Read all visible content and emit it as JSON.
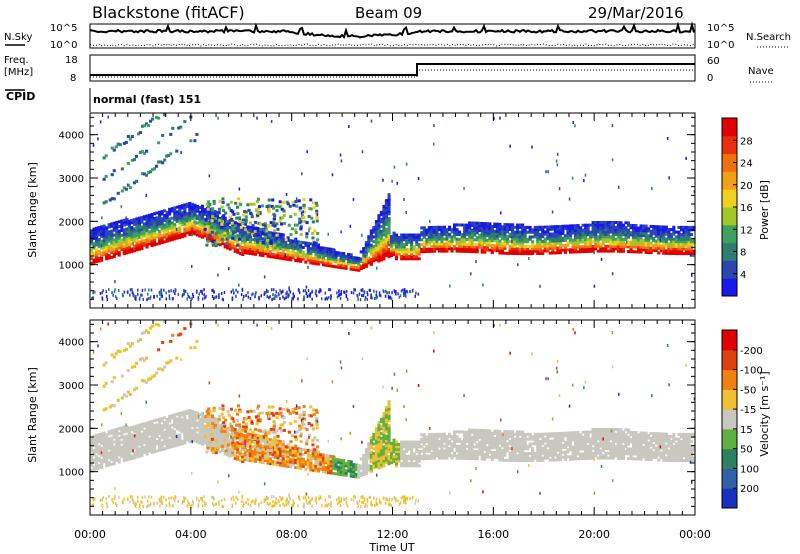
{
  "header": {
    "station": "Blackstone (fitACF)",
    "beam": "Beam 09",
    "date": "29/Mar/2016"
  },
  "panels": {
    "nsky_label": "N.Sky",
    "nsearch_label": "N.Search",
    "freq_label": "Freq.",
    "freq_unit": "[MHz]",
    "nave_label": "Nave",
    "cpid_label": "CPID",
    "cpid_text": "normal (fast) 151",
    "noise_ticks": [
      "10^5",
      "10^0"
    ],
    "freq_ticks": [
      "18",
      "8"
    ],
    "nave_ticks": [
      "60",
      "0"
    ]
  },
  "chart_data": [
    {
      "type": "heatmap",
      "name": "power",
      "ylabel": "Slant Range [km]",
      "xlabel": "Time UT",
      "ylim": [
        0,
        4500
      ],
      "yticks": [
        "1000",
        "2000",
        "3000",
        "4000"
      ],
      "xticks": [
        "00:00",
        "04:00",
        "08:00",
        "12:00",
        "16:00",
        "20:00",
        "00:00"
      ],
      "colorbar": {
        "label": "Power [dB]",
        "ticks": [
          "4",
          "8",
          "12",
          "16",
          "20",
          "24",
          "28"
        ],
        "colors": [
          "#1818e8",
          "#2848b0",
          "#2e7e70",
          "#40a060",
          "#a0c828",
          "#f0d020",
          "#f0a018",
          "#f07010",
          "#e83010",
          "#e00000"
        ]
      }
    },
    {
      "type": "heatmap",
      "name": "velocity",
      "ylabel": "Slant Range [km]",
      "xlabel": "Time UT",
      "ylim": [
        0,
        4500
      ],
      "yticks": [
        "1000",
        "2000",
        "3000",
        "4000"
      ],
      "xticks": [
        "00:00",
        "04:00",
        "08:00",
        "12:00",
        "16:00",
        "20:00",
        "00:00"
      ],
      "colorbar": {
        "label": "Velocity [m s⁻¹]",
        "ticks": [
          "200",
          "100",
          "50",
          "15",
          "-15",
          "-50",
          "-100",
          "-200"
        ],
        "colors": [
          "#1830c0",
          "#3060a8",
          "#2e8060",
          "#60b040",
          "#c8c8c0",
          "#f0c030",
          "#f08010",
          "#e04010",
          "#e00000"
        ]
      }
    }
  ]
}
